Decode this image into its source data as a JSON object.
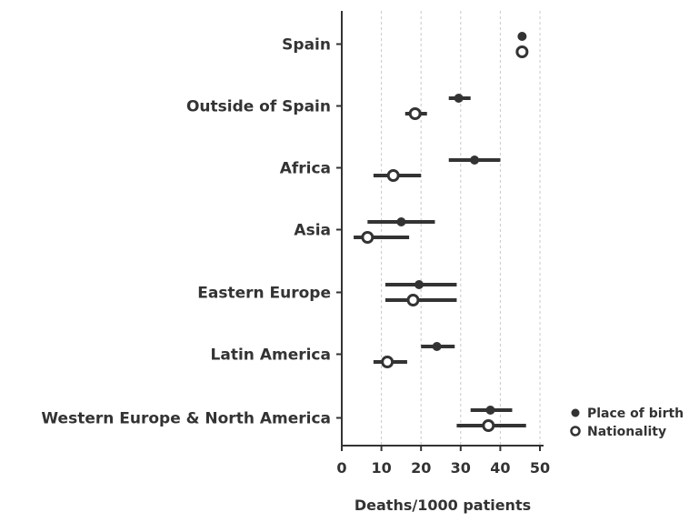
{
  "chart_data": {
    "type": "scatter",
    "title": "",
    "xlabel": "Deaths/1000 patients",
    "ylabel": "",
    "xlim": [
      0,
      50
    ],
    "xticks": [
      0,
      10,
      20,
      30,
      40,
      50
    ],
    "grid": "vertical dashed",
    "legend_position": "right",
    "categories": [
      "Spain",
      "Outside of Spain",
      "Africa",
      "Asia",
      "Eastern Europe",
      "Latin America",
      "Western Europe & North America"
    ],
    "series": [
      {
        "name": "Place of birth",
        "marker": "filled-circle",
        "color": "#333333",
        "points": [
          {
            "value": 45.5,
            "ci": [
              45.5,
              45.5
            ]
          },
          {
            "value": 29.5,
            "ci": [
              27.0,
              32.5
            ]
          },
          {
            "value": 33.5,
            "ci": [
              27.0,
              40.0
            ]
          },
          {
            "value": 15.0,
            "ci": [
              6.5,
              23.5
            ]
          },
          {
            "value": 19.5,
            "ci": [
              11.0,
              29.0
            ]
          },
          {
            "value": 24.0,
            "ci": [
              20.0,
              28.5
            ]
          },
          {
            "value": 37.5,
            "ci": [
              32.5,
              43.0
            ]
          }
        ]
      },
      {
        "name": "Nationality",
        "marker": "open-circle",
        "color": "#333333",
        "points": [
          {
            "value": 45.5,
            "ci": [
              45.5,
              45.5
            ]
          },
          {
            "value": 18.5,
            "ci": [
              16.0,
              21.5
            ]
          },
          {
            "value": 13.0,
            "ci": [
              8.0,
              20.0
            ]
          },
          {
            "value": 6.5,
            "ci": [
              3.0,
              17.0
            ]
          },
          {
            "value": 18.0,
            "ci": [
              11.0,
              29.0
            ]
          },
          {
            "value": 11.5,
            "ci": [
              8.0,
              16.5
            ]
          },
          {
            "value": 37.0,
            "ci": [
              29.0,
              46.5
            ]
          }
        ]
      }
    ]
  }
}
